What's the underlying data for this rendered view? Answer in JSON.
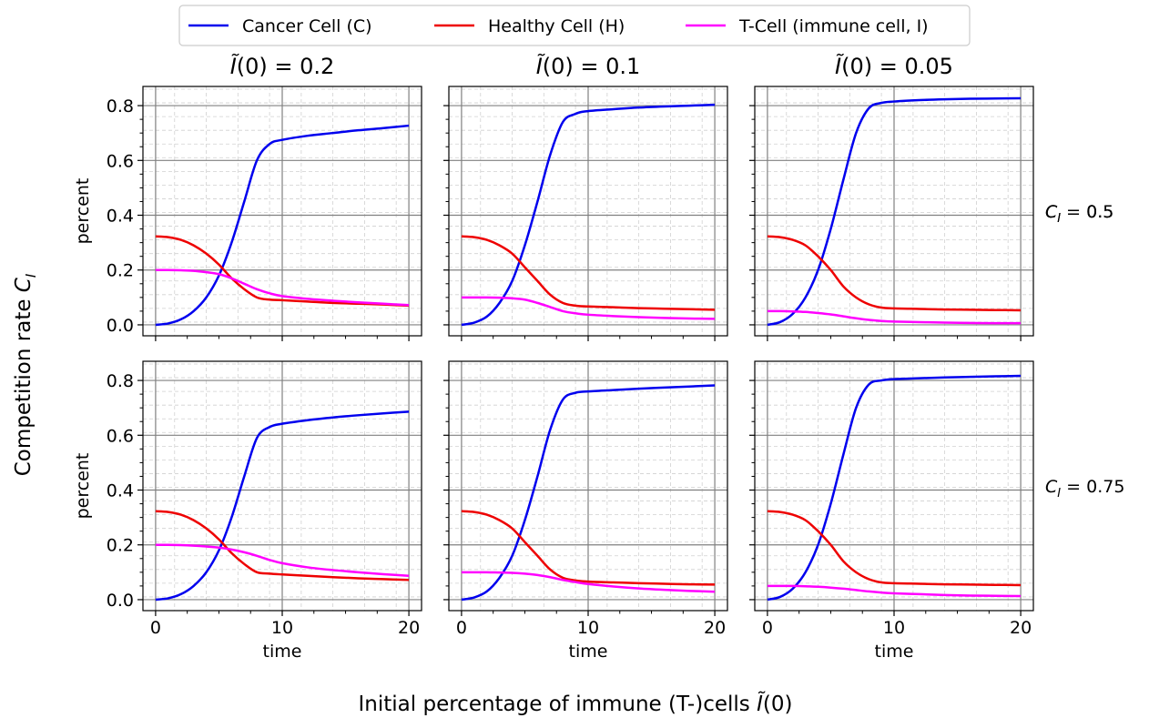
{
  "figure": {
    "supxlabel": "Initial percentage of immune (T-)cells",
    "supylabel": "Competition rate",
    "legend": [
      "Cancer Cell (C)",
      "Healthy Cell (H)",
      "T-Cell (immune cell, I)"
    ]
  },
  "colors": {
    "cancer": "#0000ee",
    "healthy": "#ee0000",
    "tcell": "#ff00ff",
    "grid_major": "#808080",
    "grid_minor": "#d0d0d0"
  },
  "chart_data": [
    {
      "type": "line",
      "row": 0,
      "col": 0,
      "title_value": "0.2",
      "row_label_value": "0.5",
      "xlabel": "",
      "ylabel": "percent",
      "xlim": [
        -1,
        21
      ],
      "ylim": [
        -0.04,
        0.87
      ],
      "xticks": [
        "0",
        "10",
        "20"
      ],
      "yticks": [
        "0.0",
        "0.2",
        "0.4",
        "0.6",
        "0.8"
      ],
      "x": [
        0,
        1,
        2,
        3,
        4,
        5,
        6,
        7,
        8,
        9,
        10,
        12,
        14,
        16,
        18,
        20
      ],
      "series": [
        {
          "name": "Cancer Cell (C)",
          "key": "cancer",
          "values": [
            0.0,
            0.005,
            0.02,
            0.05,
            0.1,
            0.18,
            0.3,
            0.45,
            0.6,
            0.66,
            0.675,
            0.69,
            0.7,
            0.71,
            0.718,
            0.727
          ]
        },
        {
          "name": "Healthy Cell (H)",
          "key": "healthy",
          "values": [
            0.323,
            0.32,
            0.31,
            0.29,
            0.26,
            0.22,
            0.17,
            0.13,
            0.1,
            0.092,
            0.09,
            0.085,
            0.08,
            0.077,
            0.074,
            0.07
          ]
        },
        {
          "name": "T-Cell (immune cell, I)",
          "key": "tcell",
          "values": [
            0.2,
            0.2,
            0.199,
            0.197,
            0.192,
            0.185,
            0.17,
            0.15,
            0.13,
            0.115,
            0.105,
            0.095,
            0.088,
            0.082,
            0.077,
            0.072
          ]
        }
      ]
    },
    {
      "type": "line",
      "row": 0,
      "col": 1,
      "title_value": "0.1",
      "row_label_value": "",
      "xlabel": "",
      "ylabel": "",
      "xlim": [
        -1,
        21
      ],
      "ylim": [
        -0.04,
        0.87
      ],
      "xticks": [
        "0",
        "10",
        "20"
      ],
      "yticks": [
        "0.0",
        "0.2",
        "0.4",
        "0.6",
        "0.8"
      ],
      "x": [
        0,
        1,
        2,
        3,
        4,
        5,
        6,
        7,
        8,
        9,
        10,
        12,
        14,
        16,
        18,
        20
      ],
      "series": [
        {
          "name": "Cancer Cell (C)",
          "key": "cancer",
          "values": [
            0.0,
            0.008,
            0.03,
            0.08,
            0.16,
            0.29,
            0.45,
            0.62,
            0.74,
            0.77,
            0.78,
            0.787,
            0.793,
            0.797,
            0.8,
            0.803
          ]
        },
        {
          "name": "Healthy Cell (H)",
          "key": "healthy",
          "values": [
            0.323,
            0.32,
            0.31,
            0.29,
            0.26,
            0.21,
            0.16,
            0.11,
            0.08,
            0.07,
            0.067,
            0.064,
            0.061,
            0.059,
            0.057,
            0.055
          ]
        },
        {
          "name": "T-Cell (immune cell, I)",
          "key": "tcell",
          "values": [
            0.1,
            0.1,
            0.1,
            0.099,
            0.097,
            0.092,
            0.08,
            0.065,
            0.05,
            0.042,
            0.037,
            0.032,
            0.028,
            0.025,
            0.023,
            0.022
          ]
        }
      ]
    },
    {
      "type": "line",
      "row": 0,
      "col": 2,
      "title_value": "0.05",
      "row_label_value": "0.5",
      "xlabel": "",
      "ylabel": "",
      "xlim": [
        -1,
        21
      ],
      "ylim": [
        -0.04,
        0.87
      ],
      "xticks": [
        "0",
        "10",
        "20"
      ],
      "yticks": [
        "0.0",
        "0.2",
        "0.4",
        "0.6",
        "0.8"
      ],
      "x": [
        0,
        1,
        2,
        3,
        4,
        5,
        6,
        7,
        8,
        9,
        10,
        12,
        14,
        16,
        18,
        20
      ],
      "series": [
        {
          "name": "Cancer Cell (C)",
          "key": "cancer",
          "values": [
            0.0,
            0.01,
            0.04,
            0.1,
            0.2,
            0.35,
            0.53,
            0.7,
            0.79,
            0.81,
            0.815,
            0.82,
            0.823,
            0.825,
            0.826,
            0.827
          ]
        },
        {
          "name": "Healthy Cell (H)",
          "key": "healthy",
          "values": [
            0.323,
            0.32,
            0.31,
            0.29,
            0.25,
            0.2,
            0.14,
            0.1,
            0.075,
            0.063,
            0.06,
            0.058,
            0.056,
            0.055,
            0.054,
            0.053
          ]
        },
        {
          "name": "T-Cell (immune cell, I)",
          "key": "tcell",
          "values": [
            0.05,
            0.05,
            0.049,
            0.047,
            0.043,
            0.038,
            0.031,
            0.024,
            0.018,
            0.014,
            0.012,
            0.01,
            0.008,
            0.007,
            0.006,
            0.006
          ]
        }
      ]
    },
    {
      "type": "line",
      "row": 1,
      "col": 0,
      "title_value": "",
      "row_label_value": "",
      "xlabel": "time",
      "ylabel": "percent",
      "xlim": [
        -1,
        21
      ],
      "ylim": [
        -0.04,
        0.87
      ],
      "xticks": [
        "0",
        "10",
        "20"
      ],
      "yticks": [
        "0.0",
        "0.2",
        "0.4",
        "0.6",
        "0.8"
      ],
      "x": [
        0,
        1,
        2,
        3,
        4,
        5,
        6,
        7,
        8,
        9,
        10,
        12,
        14,
        16,
        18,
        20
      ],
      "series": [
        {
          "name": "Cancer Cell (C)",
          "key": "cancer",
          "values": [
            0.0,
            0.005,
            0.02,
            0.05,
            0.1,
            0.18,
            0.3,
            0.45,
            0.59,
            0.63,
            0.642,
            0.655,
            0.665,
            0.673,
            0.68,
            0.686
          ]
        },
        {
          "name": "Healthy Cell (H)",
          "key": "healthy",
          "values": [
            0.323,
            0.32,
            0.31,
            0.29,
            0.26,
            0.22,
            0.17,
            0.13,
            0.1,
            0.095,
            0.092,
            0.087,
            0.082,
            0.078,
            0.075,
            0.072
          ]
        },
        {
          "name": "T-Cell (immune cell, I)",
          "key": "tcell",
          "values": [
            0.2,
            0.2,
            0.199,
            0.197,
            0.194,
            0.19,
            0.183,
            0.173,
            0.16,
            0.145,
            0.133,
            0.118,
            0.108,
            0.1,
            0.093,
            0.087
          ]
        }
      ]
    },
    {
      "type": "line",
      "row": 1,
      "col": 1,
      "title_value": "",
      "row_label_value": "",
      "xlabel": "time",
      "ylabel": "",
      "xlim": [
        -1,
        21
      ],
      "ylim": [
        -0.04,
        0.87
      ],
      "xticks": [
        "0",
        "10",
        "20"
      ],
      "yticks": [
        "0.0",
        "0.2",
        "0.4",
        "0.6",
        "0.8"
      ],
      "x": [
        0,
        1,
        2,
        3,
        4,
        5,
        6,
        7,
        8,
        9,
        10,
        12,
        14,
        16,
        18,
        20
      ],
      "series": [
        {
          "name": "Cancer Cell (C)",
          "key": "cancer",
          "values": [
            0.0,
            0.008,
            0.03,
            0.08,
            0.16,
            0.29,
            0.45,
            0.62,
            0.73,
            0.755,
            0.76,
            0.765,
            0.77,
            0.774,
            0.778,
            0.782
          ]
        },
        {
          "name": "Healthy Cell (H)",
          "key": "healthy",
          "values": [
            0.323,
            0.32,
            0.31,
            0.29,
            0.26,
            0.21,
            0.16,
            0.11,
            0.08,
            0.07,
            0.066,
            0.063,
            0.06,
            0.058,
            0.056,
            0.055
          ]
        },
        {
          "name": "T-Cell (immune cell, I)",
          "key": "tcell",
          "values": [
            0.1,
            0.1,
            0.1,
            0.099,
            0.098,
            0.095,
            0.09,
            0.082,
            0.072,
            0.064,
            0.057,
            0.048,
            0.041,
            0.036,
            0.032,
            0.029
          ]
        }
      ]
    },
    {
      "type": "line",
      "row": 1,
      "col": 2,
      "title_value": "",
      "row_label_value": "0.75",
      "xlabel": "time",
      "ylabel": "",
      "xlim": [
        -1,
        21
      ],
      "ylim": [
        -0.04,
        0.87
      ],
      "xticks": [
        "0",
        "10",
        "20"
      ],
      "yticks": [
        "0.0",
        "0.2",
        "0.4",
        "0.6",
        "0.8"
      ],
      "x": [
        0,
        1,
        2,
        3,
        4,
        5,
        6,
        7,
        8,
        9,
        10,
        12,
        14,
        16,
        18,
        20
      ],
      "series": [
        {
          "name": "Cancer Cell (C)",
          "key": "cancer",
          "values": [
            0.0,
            0.01,
            0.04,
            0.1,
            0.2,
            0.35,
            0.53,
            0.7,
            0.785,
            0.8,
            0.805,
            0.808,
            0.811,
            0.813,
            0.815,
            0.817
          ]
        },
        {
          "name": "Healthy Cell (H)",
          "key": "healthy",
          "values": [
            0.323,
            0.32,
            0.31,
            0.29,
            0.25,
            0.2,
            0.14,
            0.1,
            0.075,
            0.063,
            0.06,
            0.058,
            0.056,
            0.055,
            0.054,
            0.053
          ]
        },
        {
          "name": "T-Cell (immune cell, I)",
          "key": "tcell",
          "values": [
            0.05,
            0.05,
            0.05,
            0.049,
            0.047,
            0.044,
            0.04,
            0.035,
            0.03,
            0.026,
            0.023,
            0.02,
            0.017,
            0.015,
            0.014,
            0.013
          ]
        }
      ]
    }
  ]
}
